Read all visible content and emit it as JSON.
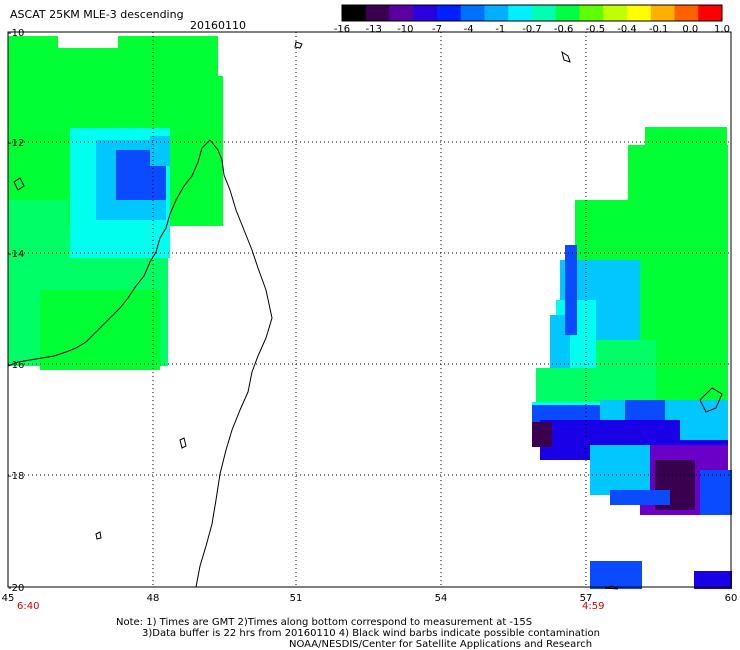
{
  "header": {
    "title": "ASCAT 25KM MLE-3 descending",
    "date": "20160110"
  },
  "colorbar": {
    "labels": [
      "-16",
      "-13",
      "-10",
      "-7",
      "-4",
      "-1",
      "-0.7",
      "-0.6",
      "-0.5",
      "-0.4",
      "-0.1",
      "0.0",
      "1.0"
    ],
    "colors": [
      "#000000",
      "#3a0050",
      "#5a00a0",
      "#2a00e0",
      "#0020ff",
      "#0070ff",
      "#00b0ff",
      "#00f0ff",
      "#00ffb0",
      "#00ff40",
      "#60ff00",
      "#c0ff00",
      "#ffff00",
      "#ffb000",
      "#ff6000",
      "#ff0000"
    ]
  },
  "map": {
    "lon_labels": [
      "45",
      "48",
      "51",
      "54",
      "57",
      "60"
    ],
    "lat_labels": [
      "-10",
      "-12",
      "-14",
      "-16",
      "-18",
      "-20"
    ],
    "pass_times": [
      "6:40",
      "4:59"
    ],
    "colors": {
      "green": "#00ff33",
      "lightgreen": "#00ff66",
      "cyan": "#00ffee",
      "lightblue": "#00c8ff",
      "blue": "#0a4bff",
      "darkblue": "#1a00e6",
      "purple": "#6a00c8",
      "darkpurple": "#3a0050"
    }
  },
  "footer": {
    "line1": "Note: 1) Times are GMT 2)Times along bottom correspond to measurement at -15S",
    "line2": "3)Data buffer is 22 hrs from 20160110 4) Black wind barbs indicate possible contamination",
    "line3": "NOAA/NESDIS/Center for Satellite Applications and Research"
  }
}
